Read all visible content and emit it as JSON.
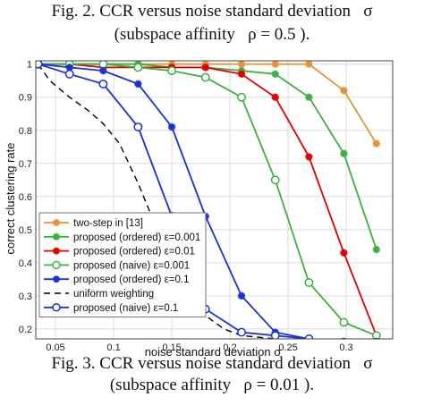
{
  "captions": {
    "top_line1": "Fig. 2. CCR versus noise standard deviation   σ",
    "top_line2": "(subspace affinity   ρ = 0.5 ).",
    "bottom_line1": "Fig. 3. CCR versus noise standard deviation   σ",
    "bottom_line2": "(subspace affinity   ρ = 0.01 )."
  },
  "chart_data": {
    "type": "line",
    "xlabel": "noise standard deviation σ",
    "ylabel": "correct clustering rate",
    "xlim": [
      0.033,
      0.34
    ],
    "ylim": [
      0.17,
      1.01
    ],
    "xticks": [
      0.05,
      0.1,
      0.15,
      0.2,
      0.25,
      0.3
    ],
    "xtick_labels": [
      "0.05",
      "0.1",
      "0.15",
      "0.2",
      "0.25",
      "0.3"
    ],
    "yticks": [
      0.2,
      0.3,
      0.4,
      0.5,
      0.6,
      0.7,
      0.8,
      0.9,
      1.0
    ],
    "ytick_labels": [
      "0.2",
      "0.3",
      "0.4",
      "0.5",
      "0.6",
      "0.7",
      "0.8",
      "0.9",
      "1"
    ],
    "grid": true,
    "legend_position": "bottom-left",
    "series": [
      {
        "name": "two-step in [13]",
        "color": "#e6943a",
        "marker": "star",
        "dash": "",
        "x": [
          0.035,
          0.062,
          0.091,
          0.121,
          0.15,
          0.179,
          0.21,
          0.239,
          0.268,
          0.298,
          0.326
        ],
        "y": [
          1.0,
          1.0,
          1.0,
          1.0,
          1.0,
          1.0,
          1.0,
          1.0,
          1.0,
          0.92,
          0.76
        ]
      },
      {
        "name": "proposed (ordered) ε=0.001",
        "color": "#3cb043",
        "marker": "star",
        "dash": "",
        "x": [
          0.035,
          0.062,
          0.091,
          0.121,
          0.15,
          0.179,
          0.21,
          0.239,
          0.268,
          0.298,
          0.326
        ],
        "y": [
          1.0,
          1.0,
          1.0,
          1.0,
          0.99,
          0.99,
          0.98,
          0.97,
          0.9,
          0.73,
          0.44
        ]
      },
      {
        "name": "proposed (ordered) ε=0.01",
        "color": "#e00000",
        "marker": "star",
        "dash": "",
        "x": [
          0.035,
          0.062,
          0.091,
          0.121,
          0.15,
          0.179,
          0.21,
          0.239,
          0.268,
          0.298,
          0.326
        ],
        "y": [
          1.0,
          1.0,
          0.99,
          0.99,
          0.99,
          0.99,
          0.97,
          0.9,
          0.72,
          0.43,
          0.18
        ]
      },
      {
        "name": "proposed (naive) ε=0.001",
        "color": "#3cb043",
        "marker": "circle",
        "dash": "",
        "x": [
          0.035,
          0.062,
          0.091,
          0.121,
          0.15,
          0.179,
          0.21,
          0.239,
          0.268,
          0.298,
          0.326
        ],
        "y": [
          1.0,
          1.0,
          1.0,
          0.99,
          0.98,
          0.96,
          0.9,
          0.65,
          0.34,
          0.22,
          0.18
        ]
      },
      {
        "name": "proposed (ordered) ε=0.1",
        "color": "#1a33cc",
        "marker": "star",
        "dash": "",
        "x": [
          0.035,
          0.062,
          0.091,
          0.121,
          0.15,
          0.179,
          0.21,
          0.239,
          0.268,
          0.298,
          0.326
        ],
        "y": [
          1.0,
          0.99,
          0.98,
          0.94,
          0.81,
          0.54,
          0.3,
          0.19,
          0.17,
          0.16,
          0.16
        ]
      },
      {
        "name": "uniform weighting",
        "color": "#000000",
        "marker": "none",
        "dash": "7,5",
        "x": [
          0.035,
          0.045,
          0.062,
          0.078,
          0.091,
          0.105,
          0.121,
          0.135,
          0.15,
          0.165,
          0.179,
          0.195,
          0.21,
          0.239,
          0.268,
          0.298,
          0.326
        ],
        "y": [
          1.0,
          0.95,
          0.9,
          0.86,
          0.82,
          0.76,
          0.64,
          0.52,
          0.4,
          0.3,
          0.24,
          0.2,
          0.18,
          0.17,
          0.165,
          0.16,
          0.16
        ]
      },
      {
        "name": "proposed (naive) ε=0.1",
        "color": "#1a33cc",
        "marker": "circle",
        "dash": "",
        "x": [
          0.035,
          0.062,
          0.091,
          0.121,
          0.15,
          0.179,
          0.21,
          0.239,
          0.268,
          0.298,
          0.326
        ],
        "y": [
          1.0,
          0.97,
          0.94,
          0.81,
          0.54,
          0.26,
          0.19,
          0.18,
          0.17,
          0.16,
          0.16
        ]
      }
    ]
  }
}
